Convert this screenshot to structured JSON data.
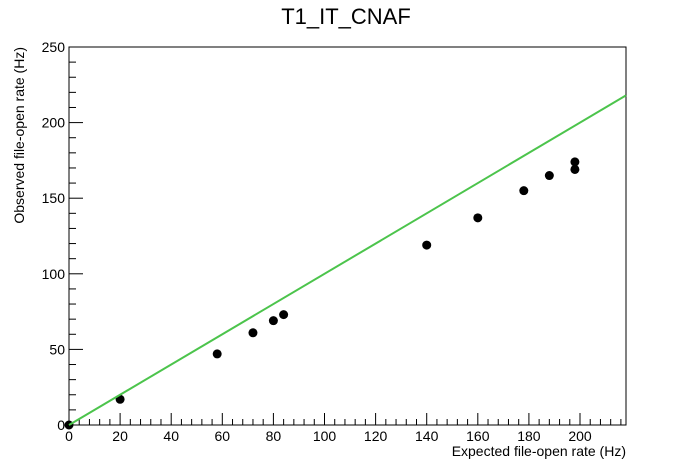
{
  "chart_data": {
    "type": "scatter",
    "title": "T1_IT_CNAF",
    "xlabel": "Expected file-open rate (Hz)",
    "ylabel": "Observed file-open rate (Hz)",
    "xlim": [
      0,
      218
    ],
    "ylim": [
      0,
      250
    ],
    "x_ticks": [
      0,
      20,
      40,
      60,
      80,
      100,
      120,
      140,
      160,
      180,
      200
    ],
    "y_ticks": [
      0,
      50,
      100,
      150,
      200,
      250
    ],
    "grid": false,
    "series": [
      {
        "kind": "points",
        "color": "#000000",
        "points": [
          {
            "x": 0,
            "y": 0
          },
          {
            "x": 20,
            "y": 17
          },
          {
            "x": 58,
            "y": 47
          },
          {
            "x": 72,
            "y": 61
          },
          {
            "x": 80,
            "y": 69
          },
          {
            "x": 84,
            "y": 73
          },
          {
            "x": 140,
            "y": 119
          },
          {
            "x": 160,
            "y": 137
          },
          {
            "x": 178,
            "y": 155
          },
          {
            "x": 188,
            "y": 165
          },
          {
            "x": 198,
            "y": 169
          },
          {
            "x": 198,
            "y": 174
          }
        ]
      },
      {
        "kind": "line",
        "color": "#4cc44c",
        "points": [
          {
            "x": 0,
            "y": 0
          },
          {
            "x": 218,
            "y": 218
          }
        ]
      }
    ]
  }
}
